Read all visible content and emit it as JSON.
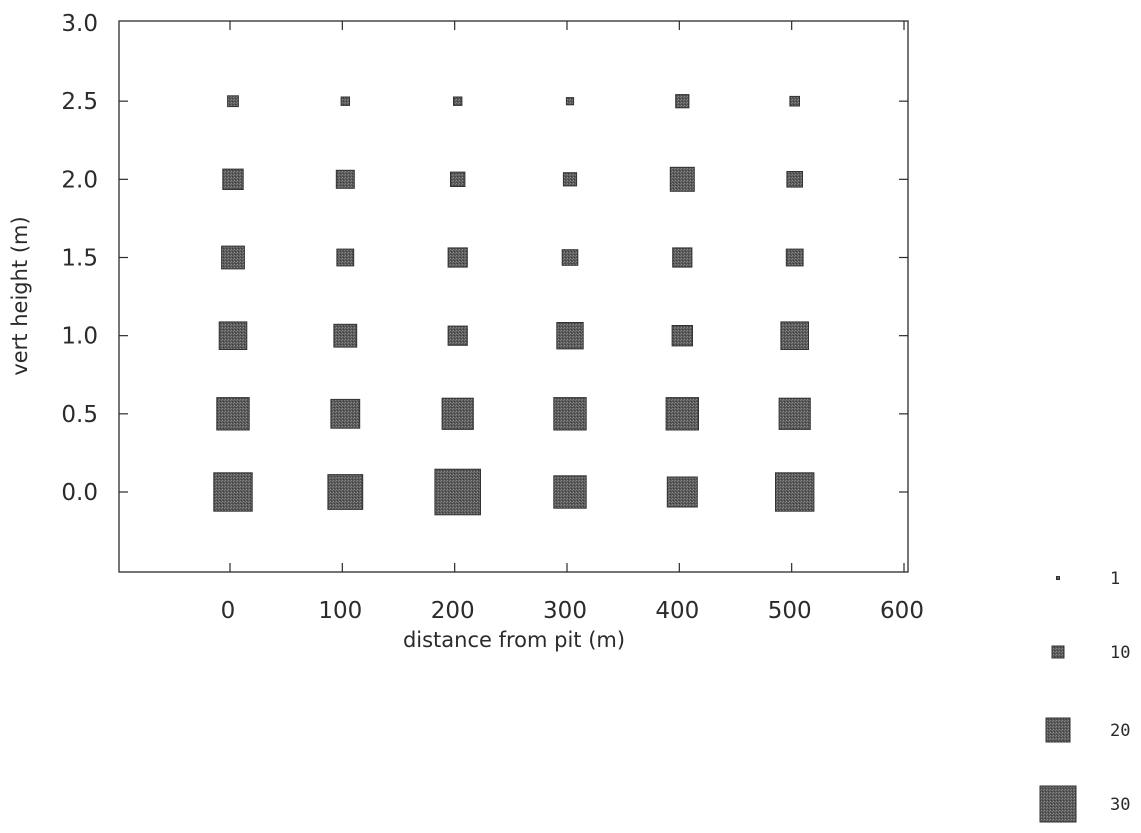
{
  "chart_data": {
    "type": "scatter",
    "title": "",
    "xlabel": "distance from pit (m)",
    "ylabel": "vert height (m)",
    "xlim": [
      -100,
      600
    ],
    "ylim": [
      -0.5,
      3.0
    ],
    "x_ticks": [
      "0",
      "100",
      "200",
      "300",
      "400",
      "500",
      "600"
    ],
    "y_ticks": [
      "0.0",
      "0.5",
      "1.0",
      "1.5",
      "2.0",
      "2.5",
      "3.0"
    ],
    "marker_shape": "square",
    "marker_color": "#555555",
    "size_legend": {
      "placement": "bottom-right",
      "entries": [
        {
          "label": "1",
          "value": 1
        },
        {
          "label": "10",
          "value": 10
        },
        {
          "label": "20",
          "value": 20
        },
        {
          "label": "30",
          "value": 30
        }
      ]
    },
    "points": [
      {
        "x": 0,
        "y": 0.0,
        "size": 32
      },
      {
        "x": 0,
        "y": 0.5,
        "size": 27
      },
      {
        "x": 0,
        "y": 1.0,
        "size": 23
      },
      {
        "x": 0,
        "y": 1.5,
        "size": 19
      },
      {
        "x": 0,
        "y": 2.0,
        "size": 17
      },
      {
        "x": 0,
        "y": 2.5,
        "size": 9
      },
      {
        "x": 100,
        "y": 0.0,
        "size": 29
      },
      {
        "x": 100,
        "y": 0.5,
        "size": 24
      },
      {
        "x": 100,
        "y": 1.0,
        "size": 19
      },
      {
        "x": 100,
        "y": 1.5,
        "size": 14
      },
      {
        "x": 100,
        "y": 2.0,
        "size": 15
      },
      {
        "x": 100,
        "y": 2.5,
        "size": 7
      },
      {
        "x": 200,
        "y": 0.0,
        "size": 38
      },
      {
        "x": 200,
        "y": 0.5,
        "size": 26
      },
      {
        "x": 200,
        "y": 1.0,
        "size": 16
      },
      {
        "x": 200,
        "y": 1.5,
        "size": 16
      },
      {
        "x": 200,
        "y": 2.0,
        "size": 12
      },
      {
        "x": 200,
        "y": 2.5,
        "size": 7
      },
      {
        "x": 300,
        "y": 0.0,
        "size": 27
      },
      {
        "x": 300,
        "y": 0.5,
        "size": 27
      },
      {
        "x": 300,
        "y": 1.0,
        "size": 22
      },
      {
        "x": 300,
        "y": 1.5,
        "size": 13
      },
      {
        "x": 300,
        "y": 2.0,
        "size": 11
      },
      {
        "x": 300,
        "y": 2.5,
        "size": 6
      },
      {
        "x": 400,
        "y": 0.0,
        "size": 25
      },
      {
        "x": 400,
        "y": 0.5,
        "size": 27
      },
      {
        "x": 400,
        "y": 1.0,
        "size": 17
      },
      {
        "x": 400,
        "y": 1.5,
        "size": 16
      },
      {
        "x": 400,
        "y": 2.0,
        "size": 20
      },
      {
        "x": 400,
        "y": 2.5,
        "size": 11
      },
      {
        "x": 500,
        "y": 0.0,
        "size": 32
      },
      {
        "x": 500,
        "y": 0.5,
        "size": 26
      },
      {
        "x": 500,
        "y": 1.0,
        "size": 23
      },
      {
        "x": 500,
        "y": 1.5,
        "size": 14
      },
      {
        "x": 500,
        "y": 2.0,
        "size": 13
      },
      {
        "x": 500,
        "y": 2.5,
        "size": 8
      }
    ]
  }
}
